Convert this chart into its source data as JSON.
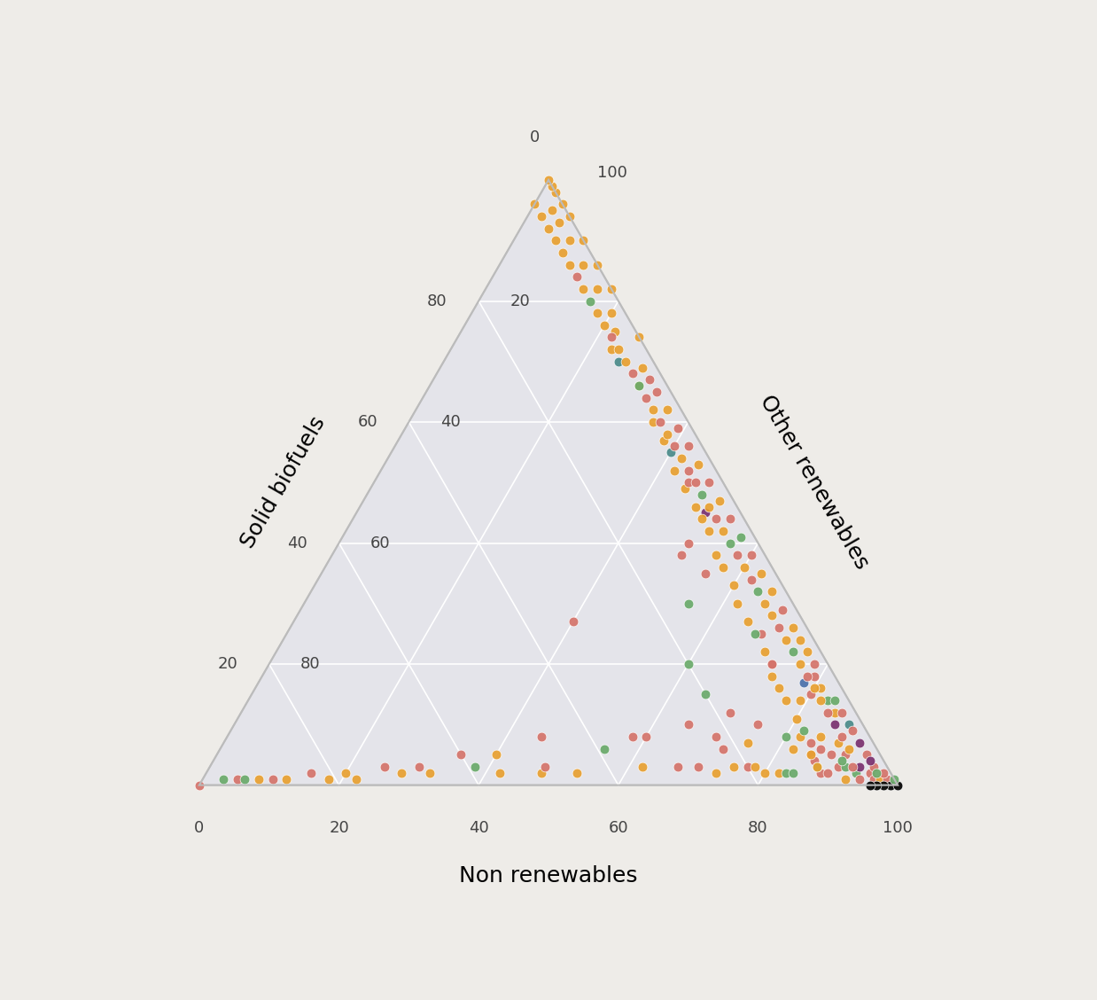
{
  "axis_labels": [
    "Non renewables",
    "Solid biofuels",
    "Other renewables"
  ],
  "background_color": "#eeece8",
  "triangle_fill": "#e4e4ea",
  "grid_color": "#ffffff",
  "point_size": 60,
  "label_fontsize": 18,
  "tick_fontsize": 13,
  "colors": {
    "salmon": "#d4736a",
    "orange": "#e8a030",
    "green": "#6aaa6a",
    "teal": "#4a8a8a",
    "purple": "#7a3070",
    "blue": "#4a70aa",
    "black": "#000000"
  },
  "points": [
    {
      "s": 5,
      "b": 5,
      "nr": 90,
      "color": "salmon"
    },
    {
      "s": 15,
      "b": 5,
      "nr": 80,
      "color": "salmon"
    },
    {
      "s": 20,
      "b": 8,
      "nr": 72,
      "color": "salmon"
    },
    {
      "s": 45,
      "b": 5,
      "nr": 50,
      "color": "purple"
    },
    {
      "s": 38,
      "b": 12,
      "nr": 50,
      "color": "salmon"
    },
    {
      "s": 35,
      "b": 10,
      "nr": 55,
      "color": "salmon"
    },
    {
      "s": 25,
      "b": 7,
      "nr": 68,
      "color": "salmon"
    },
    {
      "s": 20,
      "b": 8,
      "nr": 72,
      "color": "salmon"
    },
    {
      "s": 27,
      "b": 33,
      "nr": 40,
      "color": "salmon"
    },
    {
      "s": 10,
      "b": 25,
      "nr": 65,
      "color": "salmon"
    },
    {
      "s": 8,
      "b": 34,
      "nr": 58,
      "color": "salmon"
    },
    {
      "s": 5,
      "b": 10,
      "nr": 85,
      "color": "salmon"
    },
    {
      "s": 3,
      "b": 7,
      "nr": 90,
      "color": "salmon"
    },
    {
      "s": 17,
      "b": 5,
      "nr": 78,
      "color": "blue"
    },
    {
      "s": 3,
      "b": 22,
      "nr": 75,
      "color": "orange"
    },
    {
      "s": 2,
      "b": 25,
      "nr": 73,
      "color": "orange"
    },
    {
      "s": 2,
      "b": 18,
      "nr": 80,
      "color": "orange"
    },
    {
      "s": 2,
      "b": 16,
      "nr": 82,
      "color": "orange"
    },
    {
      "s": 2,
      "b": 3,
      "nr": 95,
      "color": "salmon"
    },
    {
      "s": 1,
      "b": 7,
      "nr": 92,
      "color": "orange"
    },
    {
      "s": 2,
      "b": 10,
      "nr": 88,
      "color": "salmon"
    },
    {
      "s": 4,
      "b": 10,
      "nr": 86,
      "color": "salmon"
    },
    {
      "s": 3,
      "b": 10,
      "nr": 87,
      "color": "green"
    },
    {
      "s": 2,
      "b": 9,
      "nr": 89,
      "color": "salmon"
    },
    {
      "s": 3,
      "b": 6,
      "nr": 91,
      "color": "green"
    },
    {
      "s": 2,
      "b": 5,
      "nr": 93,
      "color": "green"
    },
    {
      "s": 1,
      "b": 5,
      "nr": 94,
      "color": "salmon"
    },
    {
      "s": 1,
      "b": 3,
      "nr": 96,
      "color": "salmon"
    },
    {
      "s": 1,
      "b": 2,
      "nr": 97,
      "color": "orange"
    },
    {
      "s": 1,
      "b": 1,
      "nr": 98,
      "color": "salmon"
    },
    {
      "s": 0,
      "b": 1,
      "nr": 99,
      "color": "black"
    },
    {
      "s": 0,
      "b": 2,
      "nr": 98,
      "color": "black"
    },
    {
      "s": 0,
      "b": 3,
      "nr": 97,
      "color": "black"
    },
    {
      "s": 0,
      "b": 4,
      "nr": 96,
      "color": "black"
    },
    {
      "s": 0,
      "b": 0,
      "nr": 100,
      "color": "black"
    },
    {
      "s": 8,
      "b": 32,
      "nr": 60,
      "color": "salmon"
    },
    {
      "s": 6,
      "b": 39,
      "nr": 55,
      "color": "green"
    },
    {
      "s": 8,
      "b": 47,
      "nr": 45,
      "color": "salmon"
    },
    {
      "s": 5,
      "b": 55,
      "nr": 40,
      "color": "orange"
    },
    {
      "s": 5,
      "b": 60,
      "nr": 35,
      "color": "salmon"
    },
    {
      "s": 3,
      "b": 67,
      "nr": 30,
      "color": "salmon"
    },
    {
      "s": 3,
      "b": 72,
      "nr": 25,
      "color": "salmon"
    },
    {
      "s": 2,
      "b": 78,
      "nr": 20,
      "color": "orange"
    },
    {
      "s": 2,
      "b": 83,
      "nr": 15,
      "color": "salmon"
    },
    {
      "s": 1,
      "b": 89,
      "nr": 10,
      "color": "salmon"
    },
    {
      "s": 1,
      "b": 94,
      "nr": 5,
      "color": "salmon"
    },
    {
      "s": 0,
      "b": 100,
      "nr": 0,
      "color": "salmon"
    },
    {
      "s": 1,
      "b": 96,
      "nr": 3,
      "color": "green"
    },
    {
      "s": 1,
      "b": 93,
      "nr": 6,
      "color": "green"
    },
    {
      "s": 1,
      "b": 91,
      "nr": 8,
      "color": "orange"
    },
    {
      "s": 1,
      "b": 87,
      "nr": 12,
      "color": "orange"
    },
    {
      "s": 1,
      "b": 81,
      "nr": 18,
      "color": "orange"
    },
    {
      "s": 1,
      "b": 77,
      "nr": 22,
      "color": "orange"
    },
    {
      "s": 2,
      "b": 70,
      "nr": 28,
      "color": "orange"
    },
    {
      "s": 2,
      "b": 66,
      "nr": 32,
      "color": "orange"
    },
    {
      "s": 3,
      "b": 59,
      "nr": 38,
      "color": "green"
    },
    {
      "s": 2,
      "b": 56,
      "nr": 42,
      "color": "orange"
    },
    {
      "s": 2,
      "b": 50,
      "nr": 48,
      "color": "orange"
    },
    {
      "s": 2,
      "b": 45,
      "nr": 53,
      "color": "orange"
    },
    {
      "s": 3,
      "b": 35,
      "nr": 62,
      "color": "orange"
    },
    {
      "s": 3,
      "b": 30,
      "nr": 67,
      "color": "salmon"
    },
    {
      "s": 3,
      "b": 27,
      "nr": 70,
      "color": "salmon"
    },
    {
      "s": 3,
      "b": 20,
      "nr": 77,
      "color": "salmon"
    },
    {
      "s": 2,
      "b": 15,
      "nr": 83,
      "color": "green"
    },
    {
      "s": 2,
      "b": 14,
      "nr": 84,
      "color": "green"
    },
    {
      "s": 3,
      "b": 4,
      "nr": 93,
      "color": "purple"
    },
    {
      "s": 14,
      "b": 7,
      "nr": 79,
      "color": "orange"
    },
    {
      "s": 6,
      "b": 22,
      "nr": 72,
      "color": "salmon"
    },
    {
      "s": 3,
      "b": 49,
      "nr": 48,
      "color": "salmon"
    },
    {
      "s": 74,
      "b": 0,
      "nr": 26,
      "color": "orange"
    },
    {
      "s": 82,
      "b": 0,
      "nr": 18,
      "color": "orange"
    },
    {
      "s": 86,
      "b": 0,
      "nr": 14,
      "color": "orange"
    },
    {
      "s": 90,
      "b": 0,
      "nr": 10,
      "color": "orange"
    },
    {
      "s": 94,
      "b": 0,
      "nr": 6,
      "color": "orange"
    },
    {
      "s": 96,
      "b": 0,
      "nr": 4,
      "color": "orange"
    },
    {
      "s": 98,
      "b": 0,
      "nr": 2,
      "color": "orange"
    },
    {
      "s": 99,
      "b": 0,
      "nr": 1,
      "color": "orange"
    },
    {
      "s": 100,
      "b": 0,
      "nr": 0,
      "color": "orange"
    },
    {
      "s": 75,
      "b": 3,
      "nr": 22,
      "color": "orange"
    },
    {
      "s": 78,
      "b": 2,
      "nr": 20,
      "color": "orange"
    },
    {
      "s": 82,
      "b": 2,
      "nr": 16,
      "color": "orange"
    },
    {
      "s": 86,
      "b": 2,
      "nr": 12,
      "color": "orange"
    },
    {
      "s": 90,
      "b": 2,
      "nr": 8,
      "color": "orange"
    },
    {
      "s": 93,
      "b": 2,
      "nr": 5,
      "color": "orange"
    },
    {
      "s": 95,
      "b": 2,
      "nr": 3,
      "color": "orange"
    },
    {
      "s": 66,
      "b": 4,
      "nr": 30,
      "color": "orange"
    },
    {
      "s": 70,
      "b": 5,
      "nr": 25,
      "color": "teal"
    },
    {
      "s": 72,
      "b": 5,
      "nr": 23,
      "color": "orange"
    },
    {
      "s": 60,
      "b": 5,
      "nr": 35,
      "color": "orange"
    },
    {
      "s": 57,
      "b": 5,
      "nr": 38,
      "color": "orange"
    },
    {
      "s": 55,
      "b": 5,
      "nr": 40,
      "color": "teal"
    },
    {
      "s": 52,
      "b": 6,
      "nr": 42,
      "color": "orange"
    },
    {
      "s": 49,
      "b": 6,
      "nr": 45,
      "color": "orange"
    },
    {
      "s": 46,
      "b": 6,
      "nr": 48,
      "color": "orange"
    },
    {
      "s": 44,
      "b": 6,
      "nr": 50,
      "color": "orange"
    },
    {
      "s": 42,
      "b": 6,
      "nr": 52,
      "color": "orange"
    },
    {
      "s": 38,
      "b": 7,
      "nr": 55,
      "color": "orange"
    },
    {
      "s": 36,
      "b": 7,
      "nr": 57,
      "color": "orange"
    },
    {
      "s": 33,
      "b": 7,
      "nr": 60,
      "color": "orange"
    },
    {
      "s": 30,
      "b": 8,
      "nr": 62,
      "color": "orange"
    },
    {
      "s": 27,
      "b": 8,
      "nr": 65,
      "color": "orange"
    },
    {
      "s": 25,
      "b": 8,
      "nr": 67,
      "color": "green"
    },
    {
      "s": 22,
      "b": 8,
      "nr": 70,
      "color": "orange"
    },
    {
      "s": 18,
      "b": 9,
      "nr": 73,
      "color": "orange"
    },
    {
      "s": 16,
      "b": 9,
      "nr": 75,
      "color": "orange"
    },
    {
      "s": 14,
      "b": 9,
      "nr": 77,
      "color": "orange"
    },
    {
      "s": 11,
      "b": 9,
      "nr": 80,
      "color": "orange"
    },
    {
      "s": 8,
      "b": 10,
      "nr": 82,
      "color": "orange"
    },
    {
      "s": 5,
      "b": 10,
      "nr": 85,
      "color": "orange"
    },
    {
      "s": 3,
      "b": 10,
      "nr": 87,
      "color": "orange"
    },
    {
      "s": 8,
      "b": 22,
      "nr": 70,
      "color": "salmon"
    },
    {
      "s": 7,
      "b": 18,
      "nr": 75,
      "color": "orange"
    },
    {
      "s": 3,
      "b": 19,
      "nr": 78,
      "color": "orange"
    },
    {
      "s": 6,
      "b": 12,
      "nr": 82,
      "color": "orange"
    },
    {
      "s": 8,
      "b": 7,
      "nr": 85,
      "color": "orange"
    },
    {
      "s": 7,
      "b": 5,
      "nr": 88,
      "color": "orange"
    },
    {
      "s": 6,
      "b": 4,
      "nr": 90,
      "color": "orange"
    },
    {
      "s": 10,
      "b": 2,
      "nr": 88,
      "color": "teal"
    },
    {
      "s": 12,
      "b": 3,
      "nr": 85,
      "color": "orange"
    },
    {
      "s": 14,
      "b": 3,
      "nr": 83,
      "color": "green"
    },
    {
      "s": 16,
      "b": 3,
      "nr": 81,
      "color": "orange"
    },
    {
      "s": 18,
      "b": 3,
      "nr": 79,
      "color": "salmon"
    },
    {
      "s": 20,
      "b": 2,
      "nr": 78,
      "color": "salmon"
    },
    {
      "s": 22,
      "b": 2,
      "nr": 76,
      "color": "orange"
    },
    {
      "s": 24,
      "b": 2,
      "nr": 74,
      "color": "orange"
    },
    {
      "s": 26,
      "b": 2,
      "nr": 72,
      "color": "orange"
    },
    {
      "s": 29,
      "b": 2,
      "nr": 69,
      "color": "salmon"
    },
    {
      "s": 32,
      "b": 2,
      "nr": 66,
      "color": "orange"
    },
    {
      "s": 35,
      "b": 2,
      "nr": 63,
      "color": "orange"
    },
    {
      "s": 38,
      "b": 2,
      "nr": 60,
      "color": "salmon"
    },
    {
      "s": 41,
      "b": 2,
      "nr": 57,
      "color": "green"
    },
    {
      "s": 44,
      "b": 2,
      "nr": 54,
      "color": "salmon"
    },
    {
      "s": 47,
      "b": 2,
      "nr": 51,
      "color": "orange"
    },
    {
      "s": 50,
      "b": 2,
      "nr": 48,
      "color": "salmon"
    },
    {
      "s": 53,
      "b": 2,
      "nr": 45,
      "color": "orange"
    },
    {
      "s": 56,
      "b": 2,
      "nr": 42,
      "color": "salmon"
    },
    {
      "s": 59,
      "b": 2,
      "nr": 39,
      "color": "salmon"
    },
    {
      "s": 62,
      "b": 2,
      "nr": 36,
      "color": "orange"
    },
    {
      "s": 65,
      "b": 2,
      "nr": 33,
      "color": "salmon"
    },
    {
      "s": 67,
      "b": 2,
      "nr": 31,
      "color": "salmon"
    },
    {
      "s": 69,
      "b": 2,
      "nr": 29,
      "color": "orange"
    },
    {
      "s": 5,
      "b": 2,
      "nr": 93,
      "color": "salmon"
    },
    {
      "s": 3,
      "b": 2,
      "nr": 95,
      "color": "salmon"
    },
    {
      "s": 2,
      "b": 1,
      "nr": 97,
      "color": "salmon"
    },
    {
      "s": 1,
      "b": 0,
      "nr": 99,
      "color": "green"
    },
    {
      "s": 2,
      "b": 2,
      "nr": 96,
      "color": "green"
    },
    {
      "s": 4,
      "b": 2,
      "nr": 94,
      "color": "purple"
    },
    {
      "s": 7,
      "b": 2,
      "nr": 91,
      "color": "purple"
    },
    {
      "s": 9,
      "b": 2,
      "nr": 89,
      "color": "salmon"
    },
    {
      "s": 12,
      "b": 2,
      "nr": 86,
      "color": "salmon"
    },
    {
      "s": 14,
      "b": 2,
      "nr": 84,
      "color": "green"
    },
    {
      "s": 50,
      "b": 5,
      "nr": 45,
      "color": "salmon"
    },
    {
      "s": 40,
      "b": 10,
      "nr": 50,
      "color": "salmon"
    },
    {
      "s": 30,
      "b": 15,
      "nr": 55,
      "color": "green"
    },
    {
      "s": 20,
      "b": 20,
      "nr": 60,
      "color": "green"
    },
    {
      "s": 15,
      "b": 20,
      "nr": 65,
      "color": "green"
    },
    {
      "s": 12,
      "b": 18,
      "nr": 70,
      "color": "salmon"
    },
    {
      "s": 10,
      "b": 15,
      "nr": 75,
      "color": "salmon"
    },
    {
      "s": 8,
      "b": 12,
      "nr": 80,
      "color": "green"
    },
    {
      "s": 9,
      "b": 9,
      "nr": 82,
      "color": "green"
    },
    {
      "s": 7,
      "b": 9,
      "nr": 84,
      "color": "salmon"
    },
    {
      "s": 6,
      "b": 8,
      "nr": 86,
      "color": "salmon"
    },
    {
      "s": 5,
      "b": 7,
      "nr": 88,
      "color": "salmon"
    },
    {
      "s": 4,
      "b": 6,
      "nr": 90,
      "color": "green"
    },
    {
      "s": 3,
      "b": 5,
      "nr": 92,
      "color": "salmon"
    },
    {
      "s": 8,
      "b": 4,
      "nr": 88,
      "color": "salmon"
    },
    {
      "s": 10,
      "b": 4,
      "nr": 86,
      "color": "purple"
    },
    {
      "s": 12,
      "b": 4,
      "nr": 84,
      "color": "salmon"
    },
    {
      "s": 14,
      "b": 4,
      "nr": 82,
      "color": "orange"
    },
    {
      "s": 16,
      "b": 4,
      "nr": 80,
      "color": "orange"
    },
    {
      "s": 18,
      "b": 4,
      "nr": 78,
      "color": "salmon"
    },
    {
      "s": 20,
      "b": 4,
      "nr": 76,
      "color": "orange"
    },
    {
      "s": 22,
      "b": 4,
      "nr": 74,
      "color": "green"
    },
    {
      "s": 24,
      "b": 4,
      "nr": 72,
      "color": "orange"
    },
    {
      "s": 26,
      "b": 4,
      "nr": 70,
      "color": "salmon"
    },
    {
      "s": 28,
      "b": 4,
      "nr": 68,
      "color": "orange"
    },
    {
      "s": 30,
      "b": 4,
      "nr": 66,
      "color": "orange"
    },
    {
      "s": 32,
      "b": 4,
      "nr": 64,
      "color": "green"
    },
    {
      "s": 34,
      "b": 4,
      "nr": 62,
      "color": "salmon"
    },
    {
      "s": 36,
      "b": 4,
      "nr": 60,
      "color": "orange"
    },
    {
      "s": 38,
      "b": 4,
      "nr": 58,
      "color": "salmon"
    },
    {
      "s": 40,
      "b": 4,
      "nr": 56,
      "color": "green"
    },
    {
      "s": 42,
      "b": 4,
      "nr": 54,
      "color": "orange"
    },
    {
      "s": 44,
      "b": 4,
      "nr": 52,
      "color": "salmon"
    },
    {
      "s": 46,
      "b": 4,
      "nr": 50,
      "color": "orange"
    },
    {
      "s": 48,
      "b": 4,
      "nr": 48,
      "color": "green"
    },
    {
      "s": 50,
      "b": 4,
      "nr": 46,
      "color": "salmon"
    },
    {
      "s": 52,
      "b": 4,
      "nr": 44,
      "color": "salmon"
    },
    {
      "s": 54,
      "b": 4,
      "nr": 42,
      "color": "orange"
    },
    {
      "s": 56,
      "b": 4,
      "nr": 40,
      "color": "salmon"
    },
    {
      "s": 58,
      "b": 4,
      "nr": 38,
      "color": "orange"
    },
    {
      "s": 60,
      "b": 4,
      "nr": 36,
      "color": "salmon"
    },
    {
      "s": 62,
      "b": 4,
      "nr": 34,
      "color": "orange"
    },
    {
      "s": 64,
      "b": 4,
      "nr": 32,
      "color": "salmon"
    },
    {
      "s": 66,
      "b": 4,
      "nr": 30,
      "color": "green"
    },
    {
      "s": 68,
      "b": 4,
      "nr": 28,
      "color": "salmon"
    },
    {
      "s": 70,
      "b": 4,
      "nr": 26,
      "color": "orange"
    },
    {
      "s": 72,
      "b": 4,
      "nr": 24,
      "color": "orange"
    },
    {
      "s": 74,
      "b": 4,
      "nr": 22,
      "color": "salmon"
    },
    {
      "s": 76,
      "b": 4,
      "nr": 20,
      "color": "orange"
    },
    {
      "s": 78,
      "b": 4,
      "nr": 18,
      "color": "orange"
    },
    {
      "s": 80,
      "b": 4,
      "nr": 16,
      "color": "green"
    },
    {
      "s": 82,
      "b": 4,
      "nr": 14,
      "color": "orange"
    },
    {
      "s": 84,
      "b": 4,
      "nr": 12,
      "color": "salmon"
    },
    {
      "s": 86,
      "b": 4,
      "nr": 10,
      "color": "orange"
    },
    {
      "s": 88,
      "b": 4,
      "nr": 8,
      "color": "orange"
    },
    {
      "s": 90,
      "b": 4,
      "nr": 6,
      "color": "orange"
    },
    {
      "s": 92,
      "b": 4,
      "nr": 4,
      "color": "orange"
    },
    {
      "s": 94,
      "b": 4,
      "nr": 2,
      "color": "orange"
    },
    {
      "s": 96,
      "b": 4,
      "nr": 0,
      "color": "orange"
    }
  ]
}
